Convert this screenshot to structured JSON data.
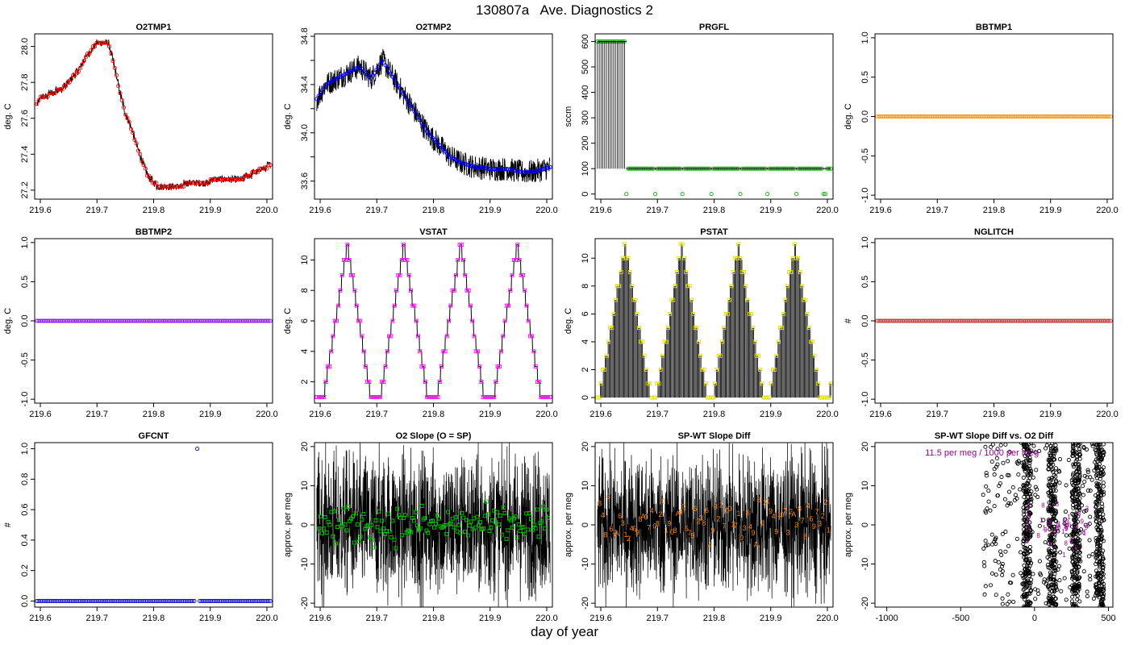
{
  "page": {
    "title": "130807a   Ave. Diagnostics 2",
    "xlabel": "day of year"
  },
  "chart_data": [
    {
      "id": "o2tmp1",
      "type": "line",
      "title": "O2TMP1",
      "ylabel": "deg. C",
      "xlim": [
        219.59,
        220.01
      ],
      "ylim": [
        27.15,
        28.07
      ],
      "xticks": [
        219.6,
        219.7,
        219.8,
        219.9,
        220.0
      ],
      "xtick_labels": [
        "219.6",
        "219.7",
        "219.8",
        "219.9",
        "220.0"
      ],
      "yticks": [
        27.2,
        27.4,
        27.6,
        27.8,
        28.0
      ],
      "ytick_labels": [
        "27.2",
        "27.4",
        "27.6",
        "27.8",
        "28.0"
      ],
      "style": "noisy-steps",
      "noise": 0.02,
      "marker": "circle",
      "marker_color": "#ff0000",
      "line_color": "#000000",
      "x": [
        219.59,
        219.6,
        219.62,
        219.64,
        219.65,
        219.66,
        219.67,
        219.68,
        219.69,
        219.7,
        219.71,
        219.72,
        219.73,
        219.74,
        219.75,
        219.76,
        219.77,
        219.78,
        219.79,
        219.8,
        219.81,
        219.84,
        219.86,
        219.9,
        219.94,
        219.96,
        219.98,
        220.0,
        220.01
      ],
      "y": [
        27.65,
        27.71,
        27.74,
        27.77,
        27.8,
        27.84,
        27.88,
        27.94,
        27.98,
        28.02,
        28.03,
        28.02,
        27.9,
        27.75,
        27.63,
        27.55,
        27.45,
        27.36,
        27.28,
        27.24,
        27.22,
        27.21,
        27.24,
        27.25,
        27.25,
        27.27,
        27.3,
        27.33,
        27.34
      ]
    },
    {
      "id": "o2tmp2",
      "type": "line",
      "title": "O2TMP2",
      "ylabel": "deg. C",
      "xlim": [
        219.59,
        220.01
      ],
      "ylim": [
        33.45,
        34.82
      ],
      "xticks": [
        219.6,
        219.7,
        219.8,
        219.9,
        220.0
      ],
      "xtick_labels": [
        "219.6",
        "219.7",
        "219.8",
        "219.9",
        "220.0"
      ],
      "yticks": [
        33.6,
        33.8,
        34.0,
        34.2,
        34.4,
        34.6,
        34.8
      ],
      "ytick_labels": [
        "33.6",
        "",
        "34.0",
        "",
        "34.4",
        "",
        "34.8"
      ],
      "style": "noisy",
      "noise": 0.1,
      "marker": "circle",
      "marker_color": "#0000ff",
      "line_color": "#000000",
      "x": [
        219.59,
        219.61,
        219.63,
        219.65,
        219.67,
        219.69,
        219.71,
        219.73,
        219.75,
        219.77,
        219.79,
        219.81,
        219.83,
        219.85,
        219.87,
        219.9,
        219.93,
        219.96,
        219.98,
        220.01
      ],
      "y": [
        34.25,
        34.4,
        34.45,
        34.5,
        34.55,
        34.45,
        34.6,
        34.45,
        34.3,
        34.15,
        34.0,
        33.9,
        33.8,
        33.75,
        33.72,
        33.7,
        33.7,
        33.67,
        33.68,
        33.72
      ]
    },
    {
      "id": "prgfl",
      "type": "line",
      "title": "PRGFL",
      "ylabel": "sccm",
      "xlim": [
        219.59,
        220.01
      ],
      "ylim": [
        -20,
        630
      ],
      "xticks": [
        219.6,
        219.7,
        219.8,
        219.9,
        220.0
      ],
      "xtick_labels": [
        "219.6",
        "219.7",
        "219.8",
        "219.9",
        "220.0"
      ],
      "yticks": [
        0,
        100,
        200,
        300,
        400,
        500,
        600
      ],
      "ytick_labels": [
        "0",
        "100",
        "200",
        "300",
        "400",
        "500",
        "600"
      ],
      "style": "purge",
      "marker": "circle",
      "marker_color": "#00aa00",
      "line_color": "#000000",
      "high_until": 219.645,
      "high_value": 600,
      "low_value": 100,
      "drops": [
        219.645,
        219.695,
        219.745,
        219.795,
        219.845,
        219.895,
        219.945,
        219.995
      ]
    },
    {
      "id": "bbtmp1",
      "type": "scatter",
      "title": "BBTMP1",
      "ylabel": "deg. C",
      "xlim": [
        219.59,
        220.01
      ],
      "ylim": [
        -1.05,
        1.05
      ],
      "xticks": [
        219.6,
        219.7,
        219.8,
        219.9,
        220.0
      ],
      "xtick_labels": [
        "219.6",
        "219.7",
        "219.8",
        "219.9",
        "220.0"
      ],
      "yticks": [
        -1.0,
        -0.5,
        0.0,
        0.5,
        1.0
      ],
      "ytick_labels": [
        "-1.0",
        "-0.5",
        "0.0",
        "0.5",
        "1.0"
      ],
      "style": "constant",
      "value": 0.0,
      "marker": "circle",
      "marker_color": "#ff8c00"
    },
    {
      "id": "bbtmp2",
      "type": "scatter",
      "title": "BBTMP2",
      "ylabel": "deg. C",
      "xlim": [
        219.59,
        220.01
      ],
      "ylim": [
        -1.05,
        1.05
      ],
      "xticks": [
        219.6,
        219.7,
        219.8,
        219.9,
        220.0
      ],
      "xtick_labels": [
        "219.6",
        "219.7",
        "219.8",
        "219.9",
        "220.0"
      ],
      "yticks": [
        -1.0,
        -0.5,
        0.0,
        0.5,
        1.0
      ],
      "ytick_labels": [
        "-1.0",
        "-0.5",
        "0.0",
        "0.5",
        "1.0"
      ],
      "style": "constant",
      "value": 0.0,
      "marker": "circle",
      "marker_color": "#8000ff"
    },
    {
      "id": "vstat",
      "type": "line",
      "title": "VSTAT",
      "ylabel": "deg. C",
      "xlim": [
        219.59,
        220.01
      ],
      "ylim": [
        0.6,
        11.4
      ],
      "xticks": [
        219.6,
        219.7,
        219.8,
        219.9,
        220.0
      ],
      "xtick_labels": [
        "219.6",
        "219.7",
        "219.8",
        "219.9",
        "220.0"
      ],
      "yticks": [
        2,
        4,
        6,
        8,
        10
      ],
      "ytick_labels": [
        "2",
        "4",
        "6",
        "8",
        "10"
      ],
      "style": "valve-steps",
      "marker": "square",
      "marker_color": "#ff00ff",
      "line_color": "#000000",
      "cycle_starts": [
        219.6,
        219.7,
        219.8,
        219.9,
        220.005
      ],
      "cycle_peak": 11
    },
    {
      "id": "pstat",
      "type": "line",
      "title": "PSTAT",
      "ylabel": "deg. C",
      "xlim": [
        219.59,
        220.01
      ],
      "ylim": [
        -0.4,
        11.4
      ],
      "xticks": [
        219.6,
        219.7,
        219.8,
        219.9,
        220.0
      ],
      "xtick_labels": [
        "219.6",
        "219.7",
        "219.8",
        "219.9",
        "220.0"
      ],
      "yticks": [
        0,
        2,
        4,
        6,
        8,
        10
      ],
      "ytick_labels": [
        "0",
        "2",
        "4",
        "6",
        "8",
        "10"
      ],
      "style": "pump-spikes",
      "marker": "square",
      "marker_color": "#dddd00",
      "line_color": "#000000",
      "cycle_starts": [
        219.595,
        219.695,
        219.795,
        219.895,
        220.0
      ],
      "cycle_peak": 11
    },
    {
      "id": "nglitch",
      "type": "scatter",
      "title": "NGLITCH",
      "ylabel": "#",
      "xlim": [
        219.59,
        220.01
      ],
      "ylim": [
        -1.05,
        1.05
      ],
      "xticks": [
        219.6,
        219.7,
        219.8,
        219.9,
        220.0
      ],
      "xtick_labels": [
        "219.6",
        "219.7",
        "219.8",
        "219.9",
        "220.0"
      ],
      "yticks": [
        -1.0,
        -0.5,
        0.0,
        0.5,
        1.0
      ],
      "ytick_labels": [
        "-1.0",
        "-0.5",
        "0.0",
        "0.5",
        "1.0"
      ],
      "style": "constant",
      "value": 0.0,
      "marker": "circle",
      "marker_color": "#cc2222"
    },
    {
      "id": "gfcnt",
      "type": "scatter",
      "title": "GFCNT",
      "ylabel": "#",
      "xlim": [
        219.59,
        220.01
      ],
      "ylim": [
        -0.04,
        1.04
      ],
      "xticks": [
        219.6,
        219.7,
        219.8,
        219.9,
        220.0
      ],
      "xtick_labels": [
        "219.6",
        "219.7",
        "219.8",
        "219.9",
        "220.0"
      ],
      "yticks": [
        0.0,
        0.2,
        0.4,
        0.6,
        0.8,
        1.0
      ],
      "ytick_labels": [
        "0.0",
        "0.2",
        "0.4",
        "0.6",
        "0.8",
        "1.0"
      ],
      "style": "constant",
      "value": 0.0,
      "marker": "circle",
      "marker_color": "#0000cc",
      "outlier": {
        "x": 219.877,
        "y": 1.0
      }
    },
    {
      "id": "o2slope",
      "type": "scatter",
      "title": "O2 Slope (O = SP)",
      "ylabel": "approx. per meg",
      "xlim": [
        219.59,
        220.01
      ],
      "ylim": [
        -21,
        21
      ],
      "xticks": [
        219.6,
        219.7,
        219.8,
        219.9,
        220.0
      ],
      "xtick_labels": [
        "219.6",
        "219.7",
        "219.8",
        "219.9",
        "220.0"
      ],
      "yticks": [
        -20,
        -10,
        0,
        10,
        20
      ],
      "ytick_labels": [
        "-20",
        "-10",
        "0",
        "10",
        "20"
      ],
      "style": "dense-noise",
      "marker": "square",
      "marker_color": "#00cc00",
      "points_mean": 0,
      "points_spread": 3.5,
      "points_count": 150
    },
    {
      "id": "spwt",
      "type": "scatter",
      "title": "SP-WT Slope Diff",
      "ylabel": "approx. per meg",
      "xlim": [
        219.59,
        220.01
      ],
      "ylim": [
        -21,
        21
      ],
      "xticks": [
        219.6,
        219.7,
        219.8,
        219.9,
        220.0
      ],
      "xtick_labels": [
        "219.6",
        "219.7",
        "219.8",
        "219.9",
        "220.0"
      ],
      "yticks": [
        -20,
        -10,
        0,
        10,
        20
      ],
      "ytick_labels": [
        "-20",
        "-10",
        "0",
        "10",
        "20"
      ],
      "style": "dense-labels",
      "label_color": "#ff8000",
      "label_set": [
        "1",
        "2",
        "3",
        "4",
        "6",
        "7",
        "8",
        "9",
        "0",
        "A"
      ],
      "points_count": 80,
      "points_mean": 1,
      "points_spread": 4
    },
    {
      "id": "spwt-vs-o2",
      "type": "scatter",
      "title": "SP-WT Slope Diff vs. O2 Diff",
      "ylabel": "approx. per meg",
      "xlim": [
        -1080,
        530
      ],
      "ylim": [
        -21,
        21
      ],
      "xticks": [
        -1000,
        -500,
        0,
        500
      ],
      "xtick_labels": [
        "-1000",
        "-500",
        "0",
        "500"
      ],
      "yticks": [
        -20,
        -10,
        0,
        10,
        20
      ],
      "ytick_labels": [
        "-20",
        "-10",
        "0",
        "10",
        "20"
      ],
      "style": "clusters",
      "marker": "circle",
      "marker_color": "#000000",
      "cluster_centers": [
        -50,
        120,
        280,
        440
      ],
      "cluster_width": 55,
      "annotation": "11.5 per meg / 1000 per meg",
      "annotation_color": "#990099"
    }
  ]
}
